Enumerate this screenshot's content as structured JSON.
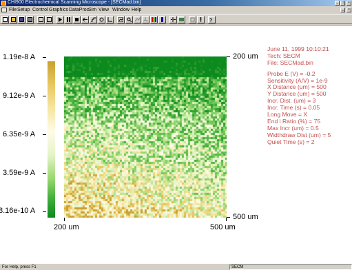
{
  "window": {
    "title": "CHI900 Electrochemical Scanning Microscope - [SECMad.bin]",
    "title_buttons": [
      "_",
      "□",
      "×"
    ]
  },
  "menu": {
    "items": [
      "File",
      "Setup",
      "Control",
      "Graphics",
      "DataProc",
      "Sim",
      "View",
      "Window",
      "Help"
    ],
    "mdi_buttons": [
      "_",
      "×"
    ]
  },
  "toolbar": {
    "icons": [
      "new-file-icon",
      "open-folder-icon",
      "save-icon",
      "print-icon",
      "cell-icon",
      "text-icon",
      "run-icon",
      "pause-icon",
      "stop-icon",
      "reverse-icon",
      "step-icon",
      "probe-icon",
      "graph-icon",
      "zoom-icon",
      "magnify-icon",
      "overlay-icon",
      "3d-icon",
      "color-bar-icon",
      "peak-icon",
      "setup-icon",
      "parameter-icon",
      "info-icon",
      "exclamation-icon",
      "help-icon"
    ]
  },
  "plot": {
    "colorbar_labels": [
      "1.19e-8 A",
      "9.12e-9 A",
      "6.35e-9 A",
      "3.59e-9 A",
      "8.16e-10 A"
    ],
    "y_labels": [
      "200 um",
      "500 um"
    ],
    "x_labels": [
      "200 um",
      "500 um"
    ],
    "colors": {
      "low": "#0d8a1e",
      "high": "#c8a030"
    }
  },
  "info": {
    "date": "June 11, 1999   10:10:21",
    "tech": "Tech: SECM",
    "file": "File: SECMad.bin",
    "params": [
      "Probe E (V) = -0.2",
      "Sensitivity (A/V) = 1e-9",
      "X Distance (um) = 500",
      "Y Distance (um) = 500",
      "Incr. Dist. (um) = 3",
      "Incr. Time (s) = 0.05",
      "Long Move = X",
      "End i Ratio (%) = 75",
      "Max Incr (um) = 0.5",
      "Widthdraw Dist (um) = 5",
      "Quiet Time (s) = 2"
    ]
  },
  "statusbar": {
    "help": "For Help, press F1",
    "pane": "SECM"
  }
}
